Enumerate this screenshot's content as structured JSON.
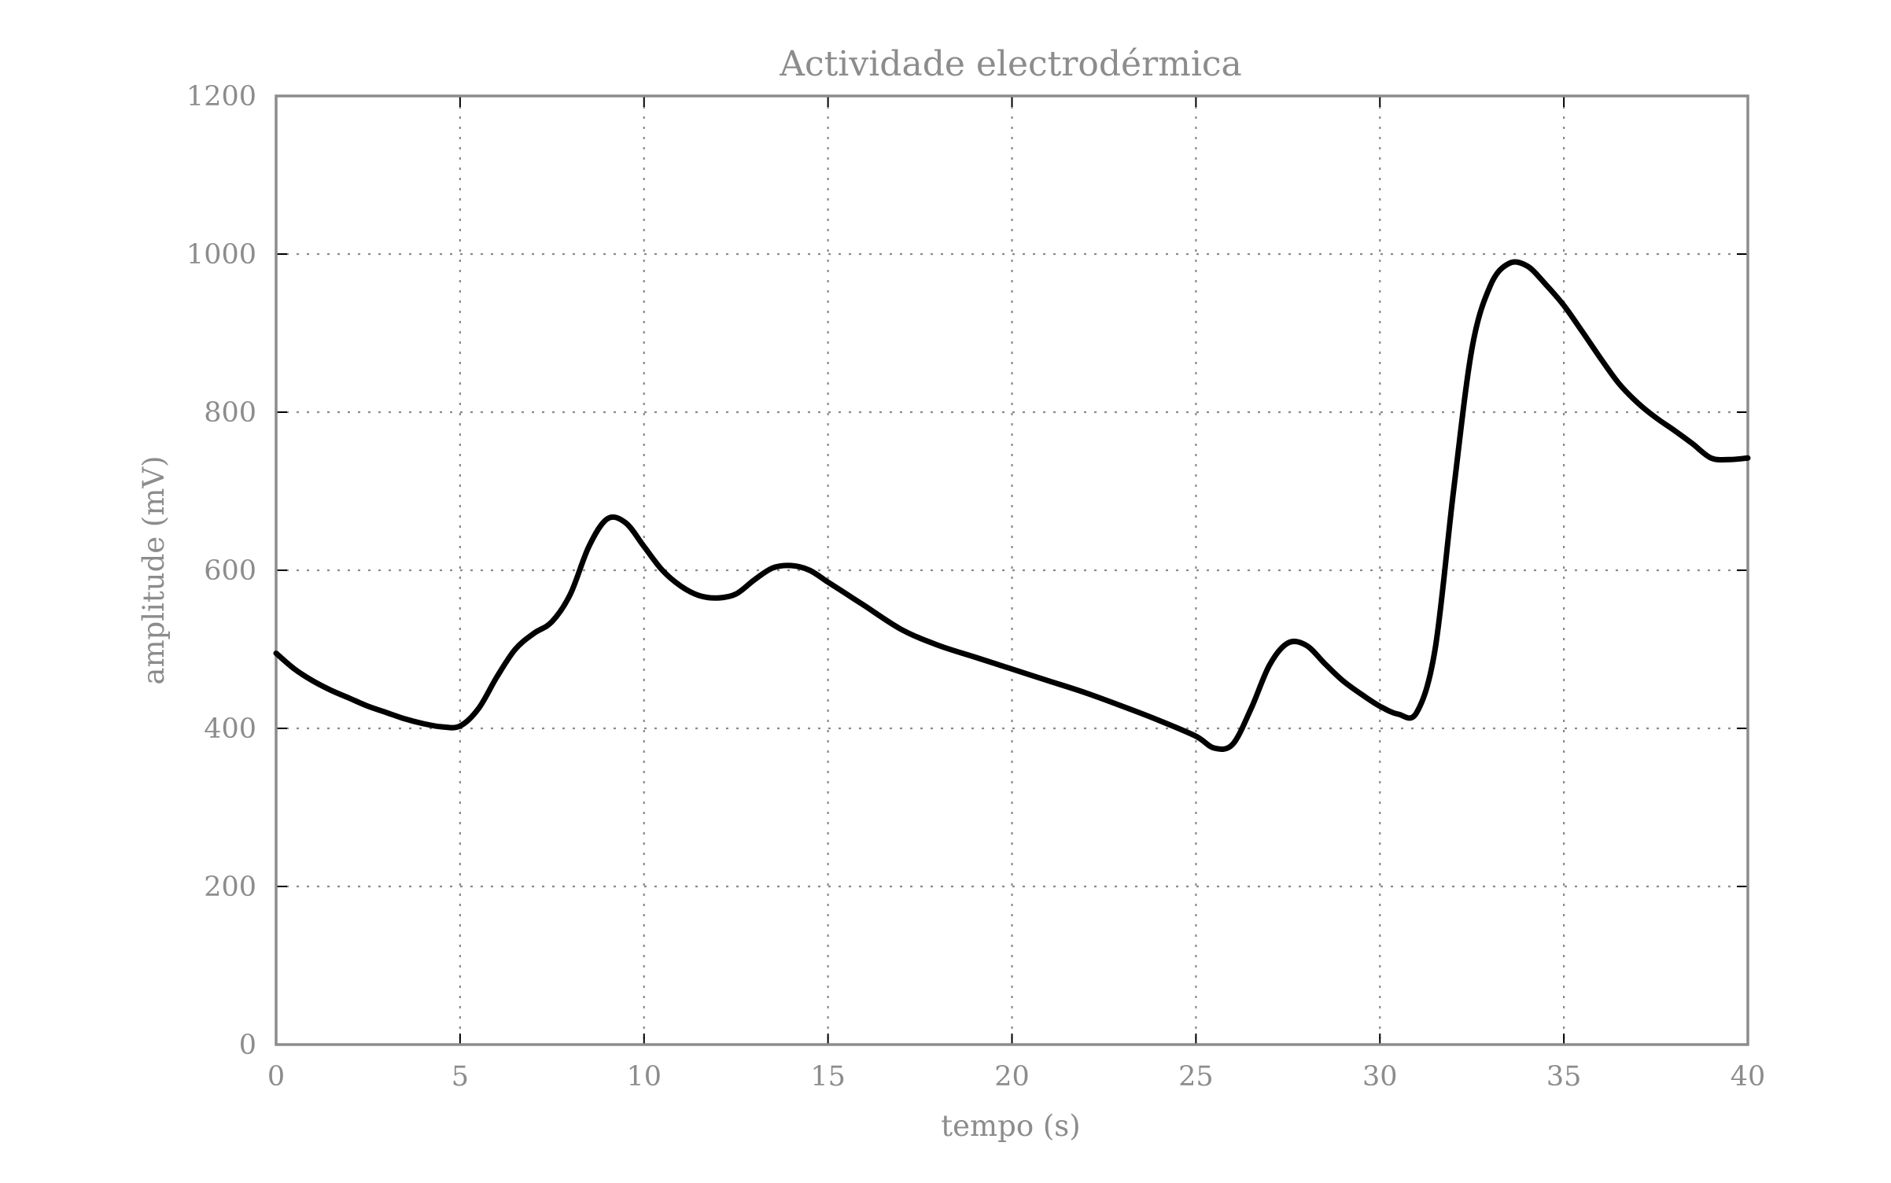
{
  "chart_data": {
    "type": "line",
    "title": "Actividade electrodérmica",
    "xlabel": "tempo (s)",
    "ylabel": "amplitude (mV)",
    "xlim": [
      0,
      40
    ],
    "ylim": [
      0,
      1200
    ],
    "xticks": [
      0,
      5,
      10,
      15,
      20,
      25,
      30,
      35,
      40
    ],
    "yticks": [
      0,
      200,
      400,
      600,
      800,
      1000,
      1200
    ],
    "x_tick_labels": [
      "0",
      "5",
      "10",
      "15",
      "20",
      "25",
      "30",
      "35",
      "40"
    ],
    "y_tick_labels": [
      "0",
      "200",
      "400",
      "600",
      "800",
      "1000",
      "1200"
    ],
    "grid": true,
    "series": [
      {
        "color": "#000000",
        "x": [
          0,
          0.5,
          1,
          1.5,
          2,
          2.5,
          3,
          3.5,
          4,
          4.5,
          5,
          5.5,
          6,
          6.5,
          7,
          7.5,
          8,
          8.5,
          9,
          9.5,
          10,
          10.5,
          11,
          11.5,
          12,
          12.5,
          13,
          13.5,
          14,
          14.5,
          15,
          15.5,
          16,
          17,
          18,
          19,
          20,
          21,
          22,
          23,
          24,
          25,
          25.5,
          26,
          26.5,
          27,
          27.5,
          28,
          28.5,
          29,
          29.5,
          30,
          30.5,
          31,
          31.5,
          32,
          32.5,
          33,
          33.5,
          34,
          34.5,
          35,
          35.5,
          36,
          36.5,
          37,
          37.5,
          38,
          38.5,
          39,
          39.5,
          40
        ],
        "y": [
          495,
          475,
          460,
          448,
          438,
          428,
          420,
          412,
          406,
          402,
          403,
          425,
          465,
          500,
          520,
          535,
          570,
          630,
          665,
          660,
          630,
          600,
          580,
          568,
          565,
          570,
          588,
          603,
          606,
          600,
          585,
          570,
          555,
          525,
          505,
          490,
          475,
          460,
          445,
          428,
          410,
          390,
          375,
          380,
          425,
          480,
          508,
          505,
          482,
          460,
          443,
          428,
          418,
          420,
          500,
          700,
          880,
          960,
          988,
          985,
          962,
          935,
          902,
          868,
          836,
          812,
          793,
          777,
          760,
          742,
          740,
          742
        ]
      }
    ]
  }
}
